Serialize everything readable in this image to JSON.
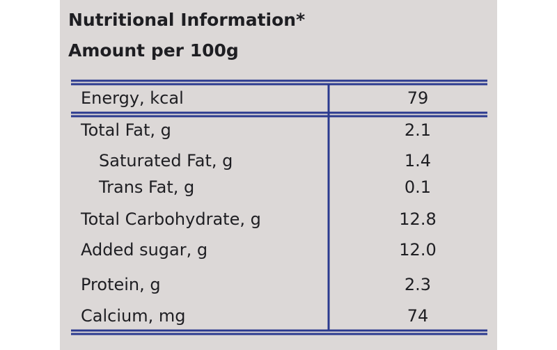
{
  "header": {
    "title": "Nutritional Information*",
    "subtitle": "Amount per 100g"
  },
  "table": {
    "rows": [
      [
        "Energy, kcal",
        "79"
      ],
      [
        "Total Fat, g",
        "2.1"
      ],
      [
        "Saturated Fat, g",
        "1.4"
      ],
      [
        "Trans Fat, g",
        "0.1"
      ],
      [
        "Total Carbohydrate, g",
        "12.8"
      ],
      [
        "Added sugar, g",
        "12.0"
      ],
      [
        "Protein, g",
        "2.3"
      ],
      [
        "Calcium, mg",
        "74"
      ]
    ]
  }
}
